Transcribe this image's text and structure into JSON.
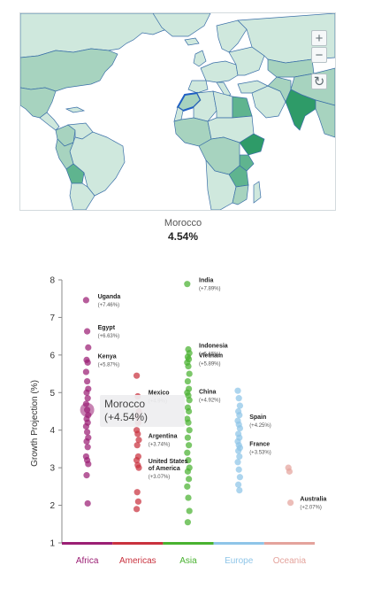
{
  "map": {
    "selected_country": "Morocco",
    "selected_value": "4.54%",
    "controls": {
      "zoom_in": "+",
      "zoom_out": "−",
      "reset": "↻"
    },
    "colors": {
      "ocean": "#ffffff",
      "land_light": "#cfe8dd",
      "land_mid": "#a7d3bf",
      "land_dark": "#5fb48f",
      "land_darkest": "#2e9b68",
      "border": "#3a6fa8",
      "selected_outline": "#1f5fc4"
    }
  },
  "tooltip": {
    "name": "Morocco",
    "value": "(+4.54%)"
  },
  "chart_data": {
    "type": "scatter",
    "ylabel": "Growth Projection (%)",
    "ylim": [
      1,
      8
    ],
    "yticks": [
      1,
      2,
      3,
      4,
      5,
      6,
      7,
      8
    ],
    "categories": [
      "Africa",
      "Americas",
      "Asia",
      "Europe",
      "Oceania"
    ],
    "category_colors": {
      "Africa": "#9b1f74",
      "Americas": "#c9323e",
      "Asia": "#49b230",
      "Europe": "#8ec5e8",
      "Oceania": "#e4a39c"
    },
    "series": [
      {
        "category": "Africa",
        "values": [
          7.46,
          6.63,
          6.2,
          5.87,
          5.8,
          5.55,
          5.3,
          5.1,
          5.0,
          4.85,
          4.7,
          4.54,
          4.4,
          4.3,
          4.2,
          4.1,
          3.95,
          3.8,
          3.7,
          3.55,
          3.3,
          3.2,
          3.1,
          2.8,
          2.05
        ]
      },
      {
        "category": "Americas",
        "values": [
          5.45,
          4.9,
          4.5,
          4.35,
          4.2,
          4.0,
          3.9,
          3.74,
          3.6,
          3.3,
          3.2,
          3.07,
          3.0,
          2.35,
          2.1,
          1.9
        ]
      },
      {
        "category": "Asia",
        "values": [
          7.89,
          6.15,
          6.05,
          5.95,
          5.89,
          5.8,
          5.7,
          5.5,
          5.3,
          5.1,
          5.0,
          4.92,
          4.8,
          4.6,
          4.5,
          4.3,
          4.2,
          4.0,
          3.8,
          3.6,
          3.4,
          3.2,
          3.0,
          2.9,
          2.7,
          2.5,
          2.2,
          1.85,
          1.55
        ]
      },
      {
        "category": "Europe",
        "values": [
          5.05,
          4.85,
          4.65,
          4.5,
          4.4,
          4.25,
          4.15,
          4.05,
          3.9,
          3.8,
          3.7,
          3.6,
          3.53,
          3.45,
          3.3,
          3.15,
          2.95,
          2.75,
          2.55,
          2.4
        ]
      },
      {
        "category": "Oceania",
        "values": [
          3.0,
          2.9,
          2.07
        ]
      }
    ],
    "annotations": [
      {
        "category": "Africa",
        "name": "Uganda",
        "value": 7.46,
        "label": "(+7.46%)"
      },
      {
        "category": "Africa",
        "name": "Egypt",
        "value": 6.63,
        "label": "(+6.63%)"
      },
      {
        "category": "Africa",
        "name": "Kenya",
        "value": 5.87,
        "label": "(+5.87%)"
      },
      {
        "category": "Americas",
        "name": "Mexico",
        "value": 4.9,
        "label": "(+4.9%)"
      },
      {
        "category": "Americas",
        "name": "Argentina",
        "value": 3.74,
        "label": "(+3.74%)"
      },
      {
        "category": "Americas",
        "name": "United States of America",
        "value": 3.07,
        "label": "(+3.07%)"
      },
      {
        "category": "Asia",
        "name": "India",
        "value": 7.89,
        "label": "(+7.89%)"
      },
      {
        "category": "Asia",
        "name": "Indonesia",
        "value": 6.15,
        "label": "(+6.15%)"
      },
      {
        "category": "Asia",
        "name": "Vietnam",
        "value": 5.89,
        "label": "(+5.89%)"
      },
      {
        "category": "Asia",
        "name": "China",
        "value": 4.92,
        "label": "(+4.92%)"
      },
      {
        "category": "Europe",
        "name": "Spain",
        "value": 4.25,
        "label": "(+4.25%)"
      },
      {
        "category": "Europe",
        "name": "France",
        "value": 3.53,
        "label": "(+3.53%)"
      },
      {
        "category": "Oceania",
        "name": "Australia",
        "value": 2.07,
        "label": "(+2.07%)"
      }
    ],
    "highlight": {
      "category": "Africa",
      "name": "Morocco",
      "value": 4.54
    }
  }
}
